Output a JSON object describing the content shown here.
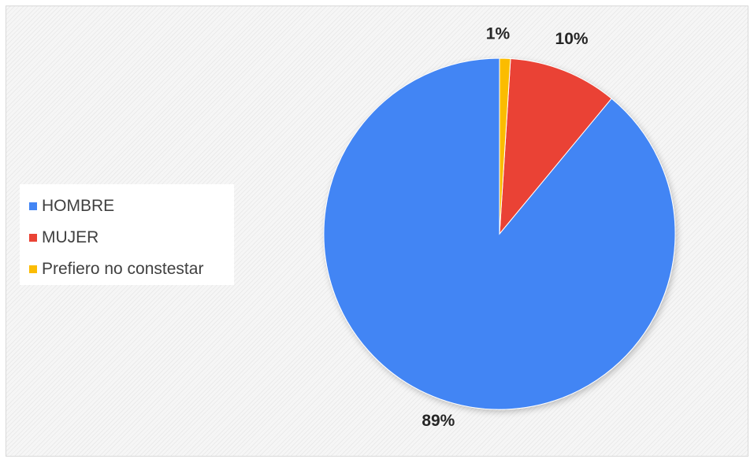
{
  "chart_data": {
    "type": "pie",
    "categories": [
      "HOMBRE",
      "MUJER",
      "Prefiero no constestar"
    ],
    "values": [
      89,
      10,
      1
    ],
    "data_labels": [
      "89%",
      "10%",
      "1%"
    ],
    "colors": [
      "#4285f4",
      "#ea4335",
      "#fbbc04"
    ],
    "start_angle_deg": 0,
    "direction": "counterclockwise",
    "legend_position": "left"
  },
  "legend": {
    "items": [
      {
        "label": "HOMBRE",
        "color": "#4285f4"
      },
      {
        "label": "MUJER",
        "color": "#ea4335"
      },
      {
        "label": "Prefiero no constestar",
        "color": "#fbbc04"
      }
    ]
  }
}
